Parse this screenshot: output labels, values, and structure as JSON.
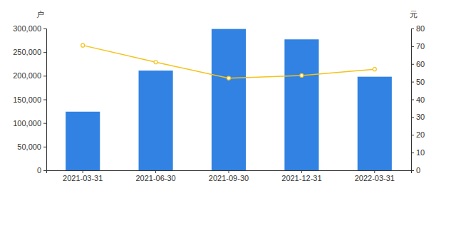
{
  "chart_data": {
    "type": "bar",
    "categories": [
      "2021-03-31",
      "2021-06-30",
      "2021-09-30",
      "2021-12-31",
      "2022-03-31"
    ],
    "ylabel": "户",
    "y2label": "元",
    "ylim": [
      0,
      300000
    ],
    "yticks": [
      0,
      {
        "value": 50000,
        "label": "50,000"
      },
      {
        "value": 100000,
        "label": "100,000"
      },
      {
        "value": 150000,
        "label": "150,000"
      },
      {
        "value": 200000,
        "label": "200,000"
      },
      {
        "value": 250000,
        "label": "250,000"
      },
      {
        "value": 300000,
        "label": "300,000"
      }
    ],
    "y2lim": [
      0,
      80
    ],
    "y2ticks": [
      0,
      10,
      20,
      30,
      40,
      50,
      60,
      70,
      80
    ],
    "grid": false,
    "series": [
      {
        "type": "bar",
        "color": "#3182e2",
        "values": [
          124000,
          211000,
          299000,
          277000,
          198000
        ]
      },
      {
        "type": "line",
        "axis": "y2",
        "color": "#f5c21b",
        "marker": "circle",
        "values": [
          70.5,
          61,
          52,
          53.5,
          57
        ]
      }
    ]
  }
}
